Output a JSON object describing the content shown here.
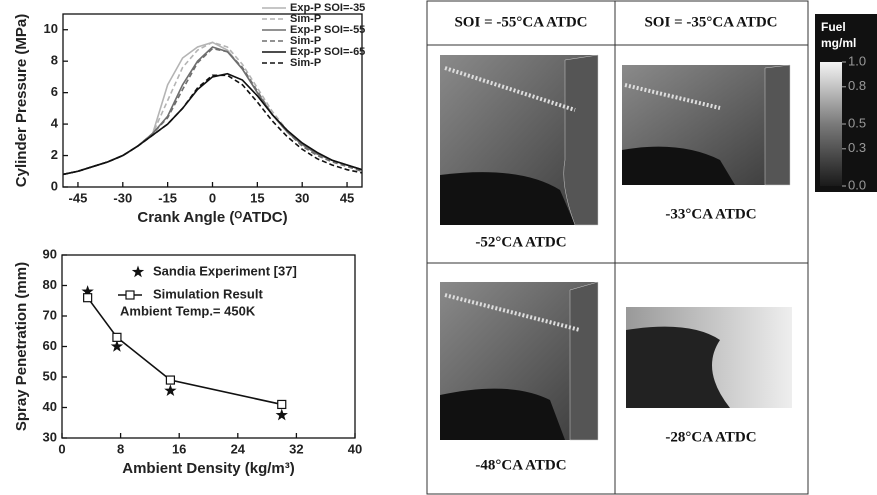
{
  "chart_data": [
    {
      "type": "line",
      "xlabel": "Crank Angle (ᴼATDC)",
      "ylabel": "Cylinder Pressure (MPa)",
      "x": [
        -50,
        -45,
        -40,
        -35,
        -30,
        -25,
        -20,
        -15,
        -10,
        -5,
        0,
        5,
        10,
        15,
        20,
        25,
        30,
        35,
        40,
        45,
        50
      ],
      "series": [
        {
          "name": "Exp-P  SOI=-35",
          "color": "#b4b4b4",
          "dash": false,
          "values": [
            0.8,
            1.0,
            1.3,
            1.6,
            2.0,
            2.6,
            3.4,
            6.5,
            8.2,
            8.9,
            9.2,
            8.7,
            7.5,
            6.0,
            4.6,
            3.5,
            2.7,
            2.1,
            1.7,
            1.4,
            1.1
          ]
        },
        {
          "name": "Sim-P",
          "color": "#b4b4b4",
          "dash": true,
          "values": [
            0.8,
            1.0,
            1.3,
            1.6,
            2.0,
            2.6,
            3.4,
            5.5,
            7.6,
            8.7,
            9.2,
            8.9,
            7.8,
            6.3,
            4.8,
            3.6,
            2.7,
            2.1,
            1.7,
            1.4,
            1.1
          ]
        },
        {
          "name": "Exp-P  SOI=-55",
          "color": "#6e6e6e",
          "dash": false,
          "values": [
            0.8,
            1.0,
            1.3,
            1.6,
            2.0,
            2.6,
            3.4,
            4.5,
            6.5,
            8.0,
            8.9,
            8.6,
            7.5,
            6.0,
            4.6,
            3.5,
            2.7,
            2.1,
            1.7,
            1.4,
            1.1
          ]
        },
        {
          "name": "Sim-P",
          "color": "#6e6e6e",
          "dash": true,
          "values": [
            0.8,
            1.0,
            1.3,
            1.6,
            2.0,
            2.6,
            3.4,
            4.4,
            6.2,
            7.9,
            8.8,
            8.6,
            7.6,
            6.1,
            4.6,
            3.5,
            2.6,
            2.0,
            1.6,
            1.3,
            1.0
          ]
        },
        {
          "name": "Exp-P  SOI=-65",
          "color": "#111111",
          "dash": false,
          "values": [
            0.8,
            1.0,
            1.3,
            1.6,
            2.0,
            2.6,
            3.3,
            4.0,
            5.0,
            6.2,
            7.0,
            7.2,
            6.8,
            5.8,
            4.6,
            3.6,
            2.8,
            2.2,
            1.7,
            1.4,
            1.1
          ]
        },
        {
          "name": "Sim-P",
          "color": "#111111",
          "dash": true,
          "values": [
            0.8,
            1.0,
            1.3,
            1.6,
            2.0,
            2.6,
            3.3,
            4.0,
            5.0,
            6.3,
            7.1,
            7.1,
            6.5,
            5.4,
            4.2,
            3.2,
            2.4,
            1.8,
            1.4,
            1.1,
            0.9
          ]
        }
      ],
      "xlim": [
        -50,
        50
      ],
      "xticks": [
        -45,
        -30,
        -15,
        0,
        15,
        30,
        45
      ],
      "ylim": [
        0,
        11
      ],
      "yticks": [
        0,
        2,
        4,
        6,
        8,
        10
      ],
      "legend": "upper right"
    },
    {
      "type": "line",
      "xlabel": "Ambient Density (kg/m³)",
      "ylabel": "Spray Penetration (mm)",
      "annotation": "Ambient Temp.= 450K",
      "series": [
        {
          "name": "Sandia Experiment [37]",
          "color": "#111111",
          "marker": "star",
          "line": false,
          "x": [
            3.5,
            7.5,
            14.8,
            30
          ],
          "values": [
            78,
            60,
            45.5,
            37.5
          ]
        },
        {
          "name": "Simulation Result",
          "color": "#111111",
          "marker": "square",
          "line": true,
          "x": [
            3.5,
            7.5,
            14.8,
            30
          ],
          "values": [
            76,
            63,
            49,
            41
          ]
        }
      ],
      "xlim": [
        0,
        40
      ],
      "xticks": [
        0,
        8,
        16,
        24,
        32,
        40
      ],
      "ylim": [
        30,
        90
      ],
      "yticks": [
        30,
        40,
        50,
        60,
        70,
        80,
        90
      ],
      "legend": "upper left"
    }
  ],
  "table": {
    "header": [
      "SOI = -55°CA ATDC",
      "SOI = -35°CA ATDC"
    ],
    "rows": [
      [
        "-52°CA ATDC",
        "-33°CA ATDC"
      ],
      [
        "-48°CA ATDC",
        "-28°CA ATDC"
      ]
    ]
  },
  "colorbar": {
    "title": [
      "Fuel",
      "mg/ml"
    ],
    "range": [
      0,
      1
    ],
    "ticks": [
      {
        "value": 1,
        "label": "1.0"
      },
      0.8,
      0.5,
      0.3,
      {
        "value": 0,
        "label": "0.0"
      }
    ]
  }
}
